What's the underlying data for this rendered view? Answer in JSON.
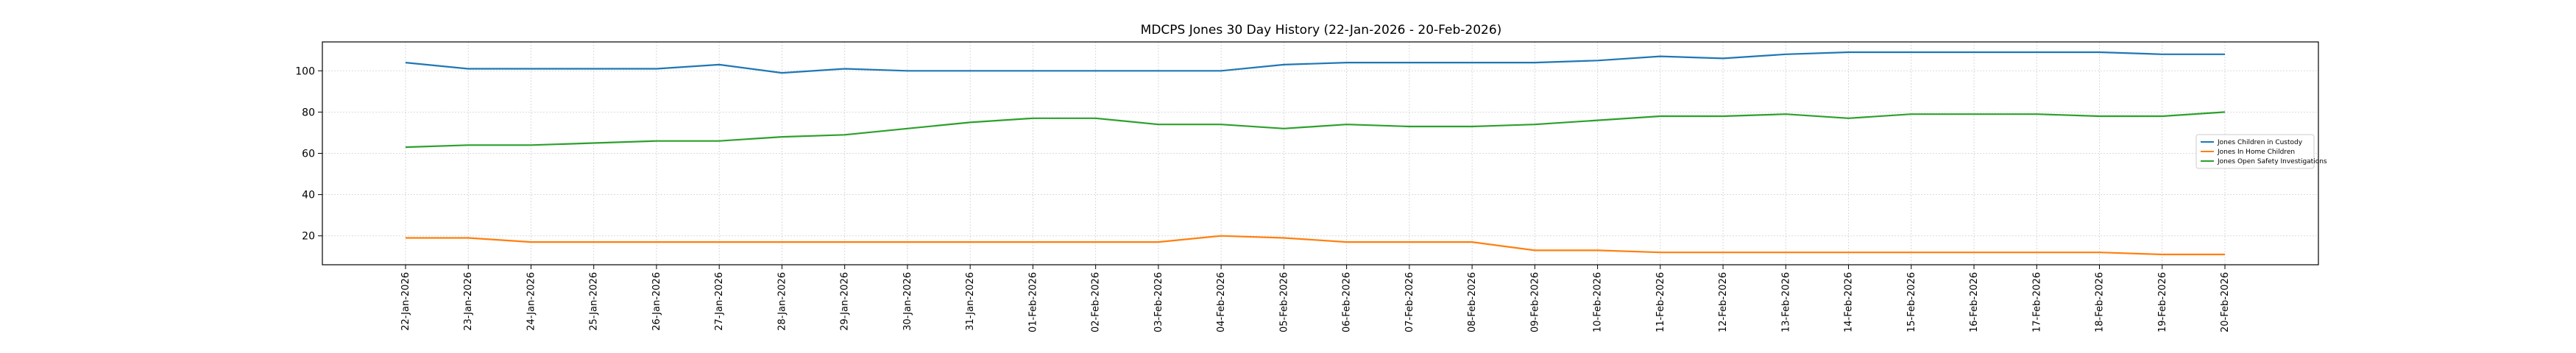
{
  "chart_data": {
    "type": "line",
    "title": "MDCPS Jones 30 Day History (22-Jan-2026 - 20-Feb-2026)",
    "xlabel": "",
    "ylabel": "",
    "ylim": [
      6,
      114
    ],
    "yticks": [
      20,
      40,
      60,
      80,
      100
    ],
    "grid": true,
    "legend_position": "center-right",
    "categories": [
      "22-Jan-2026",
      "23-Jan-2026",
      "24-Jan-2026",
      "25-Jan-2026",
      "26-Jan-2026",
      "27-Jan-2026",
      "28-Jan-2026",
      "29-Jan-2026",
      "30-Jan-2026",
      "31-Jan-2026",
      "01-Feb-2026",
      "02-Feb-2026",
      "03-Feb-2026",
      "04-Feb-2026",
      "05-Feb-2026",
      "06-Feb-2026",
      "07-Feb-2026",
      "08-Feb-2026",
      "09-Feb-2026",
      "10-Feb-2026",
      "11-Feb-2026",
      "12-Feb-2026",
      "13-Feb-2026",
      "14-Feb-2026",
      "15-Feb-2026",
      "16-Feb-2026",
      "17-Feb-2026",
      "18-Feb-2026",
      "19-Feb-2026",
      "20-Feb-2026"
    ],
    "series": [
      {
        "name": "Jones Children in Custody",
        "color": "#1f77b4",
        "values": [
          104,
          101,
          101,
          101,
          101,
          103,
          99,
          101,
          100,
          100,
          100,
          100,
          100,
          100,
          103,
          104,
          104,
          104,
          104,
          105,
          107,
          106,
          108,
          109,
          109,
          109,
          109,
          109,
          108,
          108
        ]
      },
      {
        "name": "Jones In Home Children",
        "color": "#ff7f0e",
        "values": [
          19,
          19,
          17,
          17,
          17,
          17,
          17,
          17,
          17,
          17,
          17,
          17,
          17,
          20,
          19,
          17,
          17,
          17,
          13,
          13,
          12,
          12,
          12,
          12,
          12,
          12,
          12,
          12,
          11,
          11
        ]
      },
      {
        "name": "Jones Open Safety Investigations",
        "color": "#2ca02c",
        "values": [
          63,
          64,
          64,
          65,
          66,
          66,
          68,
          69,
          72,
          75,
          77,
          77,
          74,
          74,
          72,
          74,
          73,
          73,
          74,
          76,
          78,
          78,
          79,
          77,
          79,
          79,
          79,
          78,
          78,
          80
        ]
      }
    ]
  }
}
